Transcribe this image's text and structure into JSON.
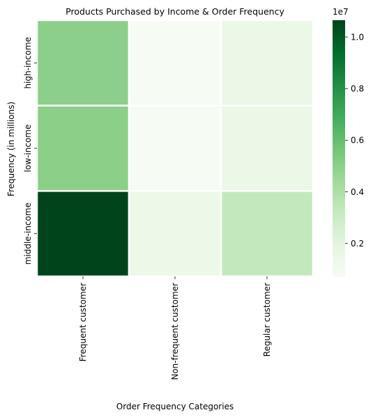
{
  "chart_data": {
    "type": "heatmap",
    "title": "Products Purchased by Income & Order Frequency",
    "xlabel": "Order Frequency Categories",
    "ylabel": "Frequency (in millions)",
    "x_categories": [
      "Frequent customer",
      "Non-frequent customer",
      "Regular customer"
    ],
    "y_categories": [
      "high-income",
      "low-income",
      "middle-income"
    ],
    "values": [
      [
        5000000,
        750000,
        1550000
      ],
      [
        5050000,
        760000,
        1500000
      ],
      [
        10650000,
        1450000,
        3300000
      ]
    ],
    "colormap": "Greens",
    "color_min": 700000,
    "color_max": 10650000,
    "colorbar": {
      "multiplier_label": "1e7",
      "ticks": [
        0.2,
        0.4,
        0.6,
        0.8,
        1.0
      ],
      "tick_labels": [
        "0.2",
        "0.4",
        "0.6",
        "0.8",
        "1.0"
      ]
    },
    "cell_border_color": "#ffffff"
  }
}
